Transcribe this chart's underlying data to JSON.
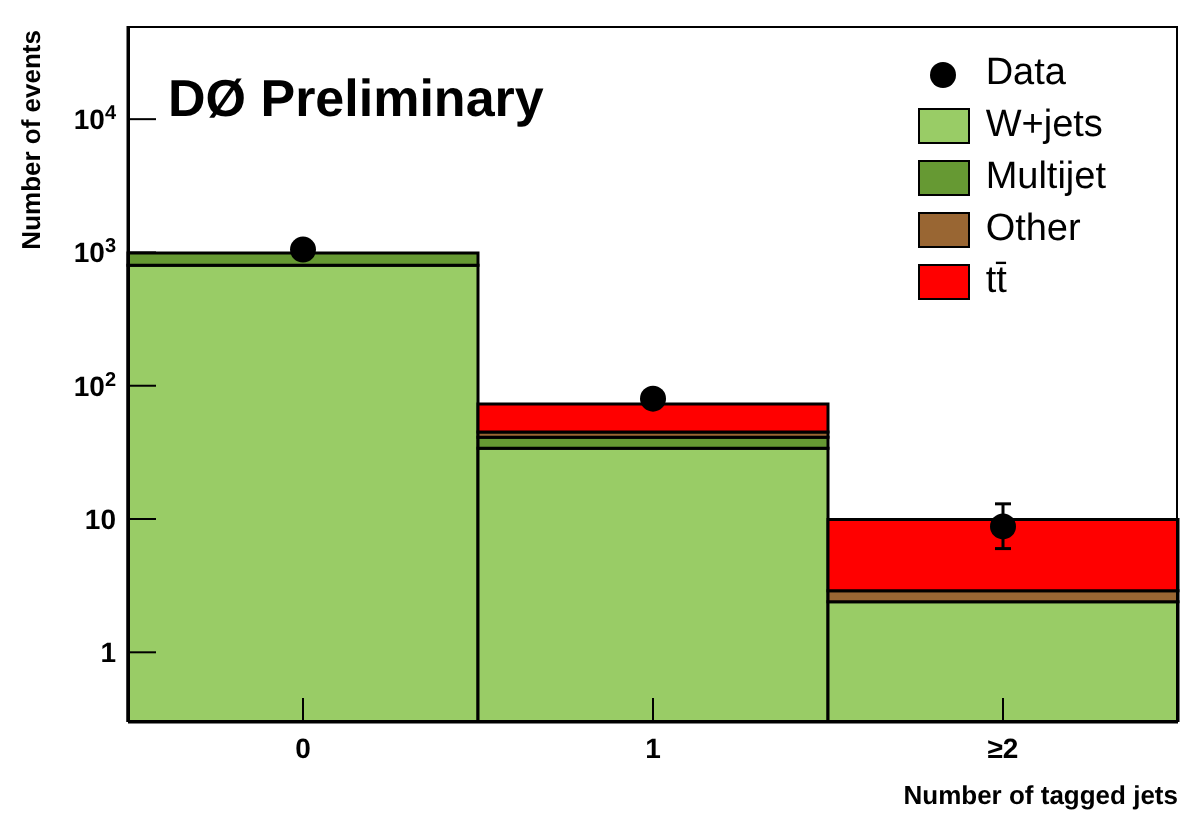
{
  "chart_data": {
    "type": "bar",
    "title": "DØ Preliminary",
    "xlabel": "Number of tagged jets",
    "ylabel": "Number of events",
    "categories": [
      "0",
      "1",
      "≥2"
    ],
    "stacked": true,
    "log": true,
    "series": [
      {
        "name": "Data",
        "type": "scatter",
        "color": "#000000",
        "values": [
          1050,
          80,
          8.8
        ],
        "errors": [
          null,
          null,
          [
            6,
            13
          ]
        ]
      },
      {
        "name": "W+jets",
        "color": "#99cc66",
        "values": [
          800,
          34,
          2.4
        ]
      },
      {
        "name": "Multijet",
        "color": "#669933",
        "values": [
          190,
          7,
          null
        ]
      },
      {
        "name": "Other",
        "color": "#996633",
        "values": [
          null,
          4,
          0.5
        ]
      },
      {
        "name": "tt̄",
        "color": "#ff0000",
        "values": [
          null,
          28,
          7
        ]
      }
    ],
    "ylim": [
      0.3,
      50000
    ],
    "yticks": [
      1,
      10,
      {
        "value": 100,
        "label": "10$^{2}$"
      },
      {
        "value": 1000,
        "label": "10$^{3}$"
      },
      {
        "value": 10000,
        "label": "10$^{4}$"
      }
    ],
    "grid": false,
    "legend": "top right",
    "marker": "circle"
  }
}
